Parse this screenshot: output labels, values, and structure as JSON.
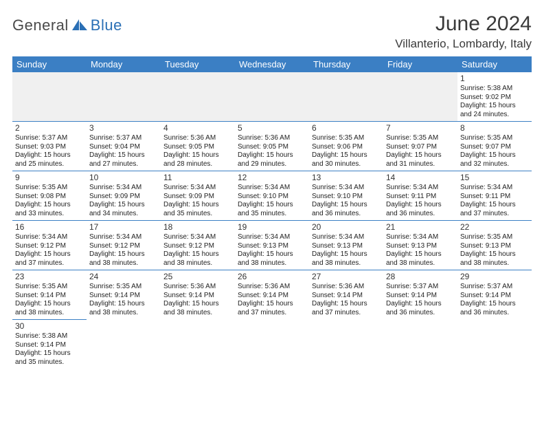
{
  "logo": {
    "part1": "General",
    "part2": "Blue"
  },
  "title": "June 2024",
  "location": "Villanterio, Lombardy, Italy",
  "colors": {
    "header_bg": "#3b7fc4",
    "header_text": "#ffffff",
    "border": "#3b7fc4",
    "firstrow_bg": "#f0f0f0",
    "logo_gray": "#4a4a4a",
    "logo_blue": "#2a6fb5"
  },
  "weekdays": [
    "Sunday",
    "Monday",
    "Tuesday",
    "Wednesday",
    "Thursday",
    "Friday",
    "Saturday"
  ],
  "weeks": [
    [
      null,
      null,
      null,
      null,
      null,
      null,
      {
        "n": "1",
        "sr": "5:38 AM",
        "ss": "9:02 PM",
        "dh": "15",
        "dm": "24"
      }
    ],
    [
      {
        "n": "2",
        "sr": "5:37 AM",
        "ss": "9:03 PM",
        "dh": "15",
        "dm": "25"
      },
      {
        "n": "3",
        "sr": "5:37 AM",
        "ss": "9:04 PM",
        "dh": "15",
        "dm": "27"
      },
      {
        "n": "4",
        "sr": "5:36 AM",
        "ss": "9:05 PM",
        "dh": "15",
        "dm": "28"
      },
      {
        "n": "5",
        "sr": "5:36 AM",
        "ss": "9:05 PM",
        "dh": "15",
        "dm": "29"
      },
      {
        "n": "6",
        "sr": "5:35 AM",
        "ss": "9:06 PM",
        "dh": "15",
        "dm": "30"
      },
      {
        "n": "7",
        "sr": "5:35 AM",
        "ss": "9:07 PM",
        "dh": "15",
        "dm": "31"
      },
      {
        "n": "8",
        "sr": "5:35 AM",
        "ss": "9:07 PM",
        "dh": "15",
        "dm": "32"
      }
    ],
    [
      {
        "n": "9",
        "sr": "5:35 AM",
        "ss": "9:08 PM",
        "dh": "15",
        "dm": "33"
      },
      {
        "n": "10",
        "sr": "5:34 AM",
        "ss": "9:09 PM",
        "dh": "15",
        "dm": "34"
      },
      {
        "n": "11",
        "sr": "5:34 AM",
        "ss": "9:09 PM",
        "dh": "15",
        "dm": "35"
      },
      {
        "n": "12",
        "sr": "5:34 AM",
        "ss": "9:10 PM",
        "dh": "15",
        "dm": "35"
      },
      {
        "n": "13",
        "sr": "5:34 AM",
        "ss": "9:10 PM",
        "dh": "15",
        "dm": "36"
      },
      {
        "n": "14",
        "sr": "5:34 AM",
        "ss": "9:11 PM",
        "dh": "15",
        "dm": "36"
      },
      {
        "n": "15",
        "sr": "5:34 AM",
        "ss": "9:11 PM",
        "dh": "15",
        "dm": "37"
      }
    ],
    [
      {
        "n": "16",
        "sr": "5:34 AM",
        "ss": "9:12 PM",
        "dh": "15",
        "dm": "37"
      },
      {
        "n": "17",
        "sr": "5:34 AM",
        "ss": "9:12 PM",
        "dh": "15",
        "dm": "38"
      },
      {
        "n": "18",
        "sr": "5:34 AM",
        "ss": "9:12 PM",
        "dh": "15",
        "dm": "38"
      },
      {
        "n": "19",
        "sr": "5:34 AM",
        "ss": "9:13 PM",
        "dh": "15",
        "dm": "38"
      },
      {
        "n": "20",
        "sr": "5:34 AM",
        "ss": "9:13 PM",
        "dh": "15",
        "dm": "38"
      },
      {
        "n": "21",
        "sr": "5:34 AM",
        "ss": "9:13 PM",
        "dh": "15",
        "dm": "38"
      },
      {
        "n": "22",
        "sr": "5:35 AM",
        "ss": "9:13 PM",
        "dh": "15",
        "dm": "38"
      }
    ],
    [
      {
        "n": "23",
        "sr": "5:35 AM",
        "ss": "9:14 PM",
        "dh": "15",
        "dm": "38"
      },
      {
        "n": "24",
        "sr": "5:35 AM",
        "ss": "9:14 PM",
        "dh": "15",
        "dm": "38"
      },
      {
        "n": "25",
        "sr": "5:36 AM",
        "ss": "9:14 PM",
        "dh": "15",
        "dm": "38"
      },
      {
        "n": "26",
        "sr": "5:36 AM",
        "ss": "9:14 PM",
        "dh": "15",
        "dm": "37"
      },
      {
        "n": "27",
        "sr": "5:36 AM",
        "ss": "9:14 PM",
        "dh": "15",
        "dm": "37"
      },
      {
        "n": "28",
        "sr": "5:37 AM",
        "ss": "9:14 PM",
        "dh": "15",
        "dm": "36"
      },
      {
        "n": "29",
        "sr": "5:37 AM",
        "ss": "9:14 PM",
        "dh": "15",
        "dm": "36"
      }
    ],
    [
      {
        "n": "30",
        "sr": "5:38 AM",
        "ss": "9:14 PM",
        "dh": "15",
        "dm": "35"
      },
      null,
      null,
      null,
      null,
      null,
      null
    ]
  ],
  "labels": {
    "sunrise": "Sunrise:",
    "sunset": "Sunset:",
    "daylight": "Daylight:",
    "hours": "hours",
    "and": "and",
    "minutes": "minutes."
  }
}
